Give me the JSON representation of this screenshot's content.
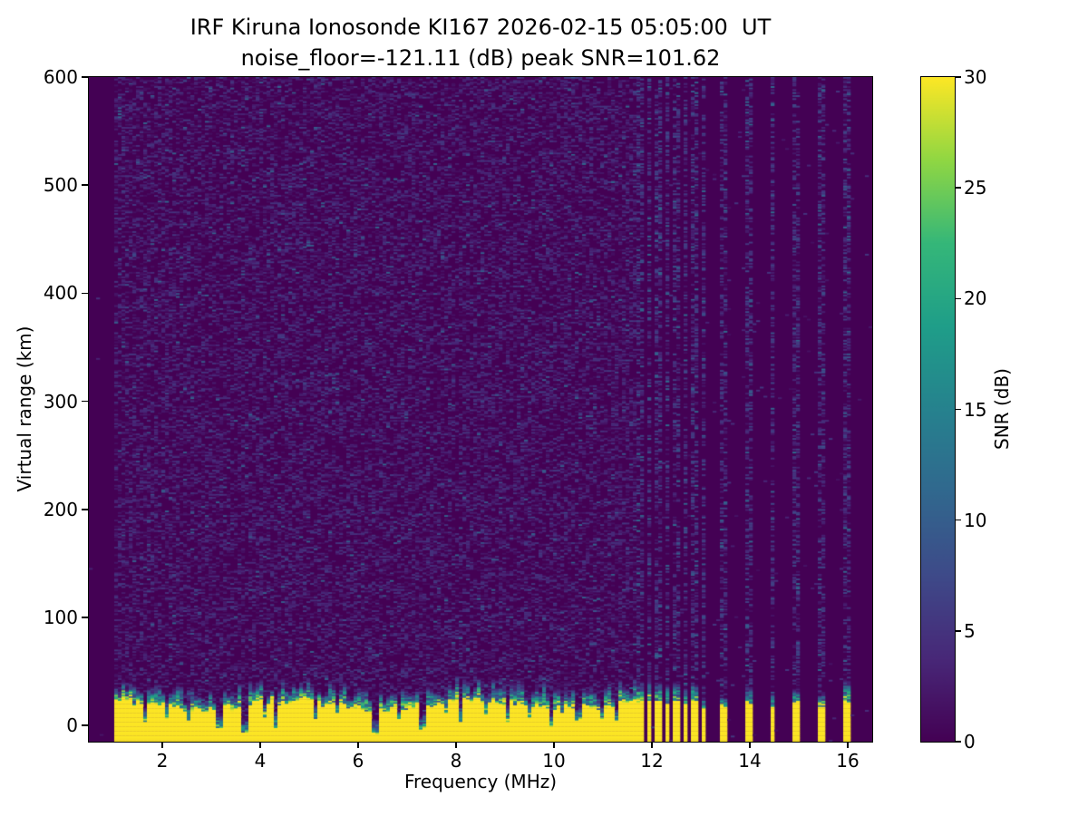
{
  "chart_data": {
    "type": "heatmap",
    "title_line1": "IRF Kiruna Ionosonde KI167 2026-02-15 05:05:00  UT",
    "title_line2": "noise_floor=-121.11 (dB) peak SNR=101.62",
    "xlabel": "Frequency (MHz)",
    "ylabel": "Virtual range (km)",
    "colorbar_label": "SNR (dB)",
    "xlim": [
      0.5,
      16.5
    ],
    "ylim": [
      -15,
      600
    ],
    "clim": [
      0,
      30
    ],
    "xticks": [
      2,
      4,
      6,
      8,
      10,
      12,
      14,
      16
    ],
    "yticks": [
      0,
      100,
      200,
      300,
      400,
      500,
      600
    ],
    "colorbar_ticks": [
      0,
      5,
      10,
      15,
      20,
      25,
      30
    ],
    "grid_on": false,
    "colormap": "viridis",
    "colors": {
      "background": "#ffffff",
      "text": "#000000",
      "viridis_stops": [
        [
          0.0,
          "#440154"
        ],
        [
          0.125,
          "#482878"
        ],
        [
          0.25,
          "#3e4a89"
        ],
        [
          0.375,
          "#31688e"
        ],
        [
          0.5,
          "#26828e"
        ],
        [
          0.625,
          "#1f9e89"
        ],
        [
          0.75,
          "#35b779"
        ],
        [
          0.875,
          "#90d743"
        ],
        [
          1.0,
          "#fde725"
        ]
      ]
    },
    "content": {
      "seed": 20260215,
      "grid": {
        "ncols": 216,
        "nrows": 440
      },
      "data_start_mhz": 1.0,
      "data_end_mhz": 16.42,
      "continuous_band_end_mhz": 11.68,
      "ground_echo": {
        "yellow_top_base_km": 15,
        "transition_extra_km_min": 8,
        "transition_extra_km_max": 24,
        "bottom_km": -15
      },
      "background_noise": {
        "p": 0.38,
        "base_db": 1.2,
        "pow": 1.5,
        "span_db": 4.5,
        "bright_p": 0.018,
        "bright_db": [
          5,
          11
        ]
      },
      "stripe_noise": {
        "p": 0.4,
        "base_db": 1.5,
        "pow": 1.2,
        "span_db": 6,
        "bright_p": 0.04,
        "bright_db": [
          7,
          12
        ]
      },
      "gap_noise_p": 0.006,
      "empty_noise_p": 0.002,
      "tx_stripes": [
        {
          "f": 11.76,
          "hw": 0.05,
          "yellow_top_km": 20,
          "teal_top_km": 40
        },
        {
          "f": 11.94,
          "hw": 0.05,
          "yellow_top_km": 22,
          "teal_top_km": 42
        },
        {
          "f": 12.12,
          "hw": 0.05,
          "yellow_top_km": 20,
          "teal_top_km": 38
        },
        {
          "f": 12.31,
          "hw": 0.05,
          "yellow_top_km": 18,
          "teal_top_km": 36
        },
        {
          "f": 12.49,
          "hw": 0.05,
          "yellow_top_km": 20,
          "teal_top_km": 40
        },
        {
          "f": 12.68,
          "hw": 0.05,
          "yellow_top_km": 18,
          "teal_top_km": 34
        },
        {
          "f": 12.86,
          "hw": 0.05,
          "yellow_top_km": 20,
          "teal_top_km": 38
        },
        {
          "f": 13.04,
          "hw": 0.05,
          "yellow_top_km": 14,
          "teal_top_km": 24
        },
        {
          "f": 13.48,
          "hw": 0.055,
          "yellow_top_km": 16,
          "teal_top_km": 26
        },
        {
          "f": 13.97,
          "hw": 0.055,
          "yellow_top_km": 18,
          "teal_top_km": 36
        },
        {
          "f": 14.47,
          "hw": 0.055,
          "yellow_top_km": 16,
          "teal_top_km": 30
        },
        {
          "f": 14.96,
          "hw": 0.055,
          "yellow_top_km": 18,
          "teal_top_km": 34
        },
        {
          "f": 15.46,
          "hw": 0.055,
          "yellow_top_km": 16,
          "teal_top_km": 28
        },
        {
          "f": 15.97,
          "hw": 0.055,
          "yellow_top_km": 20,
          "teal_top_km": 40
        }
      ],
      "notches": [
        {
          "f": 1.64,
          "w": 0.05,
          "d": 0.65
        },
        {
          "f": 2.1,
          "w": 0.04,
          "d": 0.4
        },
        {
          "f": 2.52,
          "w": 0.04,
          "d": 0.5
        },
        {
          "f": 3.17,
          "w": 0.05,
          "d": 0.75
        },
        {
          "f": 3.68,
          "w": 0.05,
          "d": 0.95
        },
        {
          "f": 4.1,
          "w": 0.04,
          "d": 0.45
        },
        {
          "f": 4.33,
          "w": 0.05,
          "d": 0.8
        },
        {
          "f": 5.1,
          "w": 0.04,
          "d": 0.5
        },
        {
          "f": 5.55,
          "w": 0.04,
          "d": 0.4
        },
        {
          "f": 6.34,
          "w": 0.06,
          "d": 0.97
        },
        {
          "f": 6.85,
          "w": 0.04,
          "d": 0.45
        },
        {
          "f": 7.32,
          "w": 0.05,
          "d": 0.8
        },
        {
          "f": 7.8,
          "w": 0.035,
          "d": 0.4
        },
        {
          "f": 8.12,
          "w": 0.045,
          "d": 0.6
        },
        {
          "f": 8.6,
          "w": 0.035,
          "d": 0.45
        },
        {
          "f": 9.03,
          "w": 0.045,
          "d": 0.6
        },
        {
          "f": 9.5,
          "w": 0.035,
          "d": 0.45
        },
        {
          "f": 9.95,
          "w": 0.05,
          "d": 0.7
        },
        {
          "f": 10.5,
          "w": 0.04,
          "d": 0.5
        },
        {
          "f": 10.95,
          "w": 0.04,
          "d": 0.55
        },
        {
          "f": 11.3,
          "w": 0.04,
          "d": 0.5
        }
      ]
    }
  }
}
